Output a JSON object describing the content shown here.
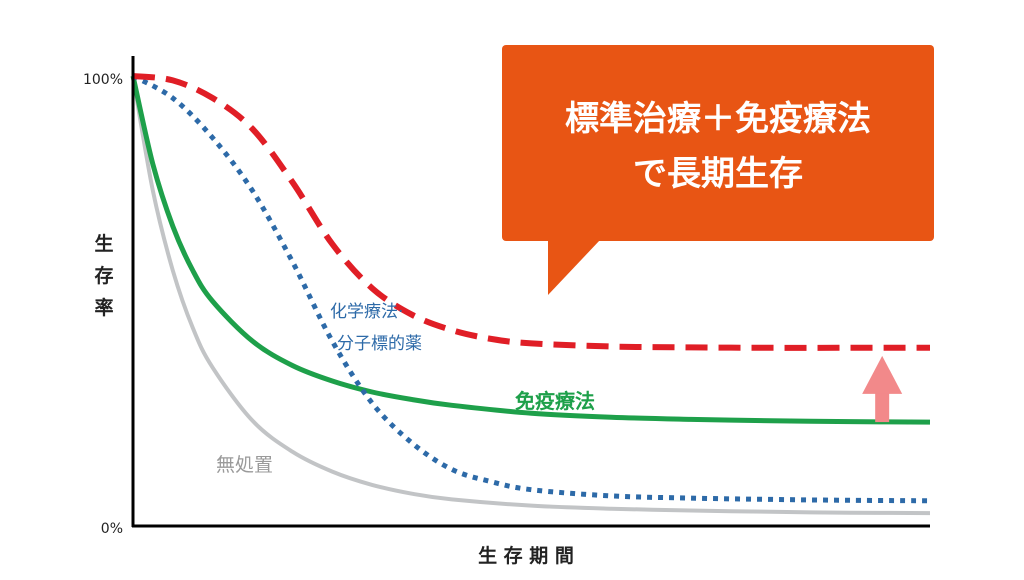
{
  "chart_data": {
    "type": "line",
    "title": "",
    "xlabel": "生 存 期 間",
    "ylabel": "生存率",
    "y_ticks": [
      "100%",
      "0%"
    ],
    "ylim": [
      0,
      100
    ],
    "xlim": [
      0,
      10
    ],
    "grid": false,
    "series": [
      {
        "name": "無処置",
        "color": "#c2c4c6",
        "style": "solid",
        "x": [
          0,
          0.25,
          0.5,
          0.75,
          1,
          1.5,
          2,
          2.5,
          3,
          3.5,
          4,
          5,
          6,
          7,
          8,
          9,
          10
        ],
        "y": [
          100,
          74,
          56,
          43,
          34,
          22,
          15,
          10.5,
          7.5,
          5.5,
          4.2,
          2.8,
          2.1,
          1.7,
          1.4,
          1.2,
          1.1
        ]
      },
      {
        "name": "免疫療法",
        "color": "#1ea04a",
        "style": "solid",
        "x": [
          0,
          0.25,
          0.5,
          0.75,
          1,
          1.5,
          2,
          2.5,
          3,
          3.5,
          4,
          5,
          6,
          7,
          8,
          9,
          10
        ],
        "y": [
          100,
          80,
          66,
          56,
          49,
          40,
          34.5,
          31,
          28.5,
          26.8,
          25.5,
          23.7,
          22.8,
          22.3,
          22.0,
          21.8,
          21.7
        ]
      },
      {
        "name": "化学療法·分子標的薬",
        "color": "#2d6aa8",
        "style": "dotted",
        "x": [
          0,
          0.5,
          1,
          1.5,
          2,
          2.5,
          3,
          3.5,
          4,
          4.5,
          5,
          6,
          7,
          8,
          9,
          10
        ],
        "y": [
          100,
          95,
          86,
          74,
          58,
          40,
          26,
          17,
          11,
          8.2,
          6.4,
          5.0,
          4.5,
          4.2,
          4.0,
          3.9
        ]
      },
      {
        "name": "標準治療＋免疫療法",
        "color": "#e01e26",
        "style": "dashed",
        "x": [
          0,
          0.5,
          1,
          1.5,
          2,
          2.5,
          3,
          3.5,
          4,
          4.5,
          5,
          6,
          7,
          8,
          9,
          10
        ],
        "y": [
          100,
          99,
          95,
          88,
          76,
          62,
          52,
          46,
          42.5,
          40.5,
          39.5,
          38.8,
          38.6,
          38.5,
          38.5,
          38.5
        ]
      }
    ],
    "annotations": {
      "chemo_label_line1": "化学療法·",
      "chemo_label_line2": "分子標的薬",
      "immuno_label": "免疫療法",
      "none_label": "無処置",
      "callout_line1": "標準治療＋免疫療法",
      "callout_line2": "で長期生存",
      "callout_color": "#e85514",
      "arrow_color": "#f2898a",
      "arrow_from_y": 21.7,
      "arrow_to_y": 38.5,
      "arrow_x": 9.4
    }
  }
}
